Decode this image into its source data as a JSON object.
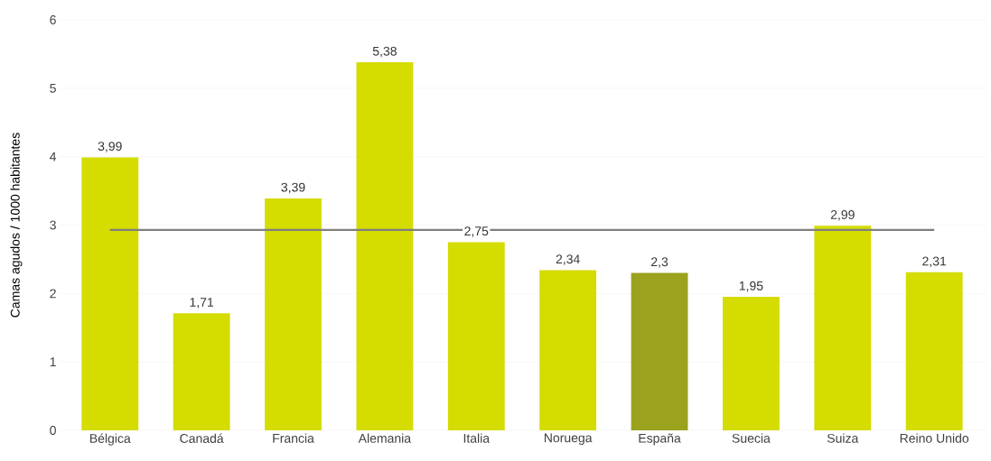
{
  "chart_data": {
    "type": "bar",
    "ylabel": "Camas agudos / 1000 habitantes",
    "categories": [
      "Bélgica",
      "Canadá",
      "Francia",
      "Alemania",
      "Italia",
      "Noruega",
      "España",
      "Suecia",
      "Suiza",
      "Reino Unido"
    ],
    "values": [
      3.99,
      1.71,
      3.39,
      5.38,
      2.75,
      2.34,
      2.3,
      1.95,
      2.99,
      2.31
    ],
    "value_labels": [
      "3,99",
      "1,71",
      "3,39",
      "5,38",
      "2,75",
      "2,34",
      "2,3",
      "1,95",
      "2,99",
      "2,31"
    ],
    "colors": [
      "#d4dc00",
      "#d4dc00",
      "#d4dc00",
      "#d4dc00",
      "#d4dc00",
      "#d4dc00",
      "#9aa21e",
      "#d4dc00",
      "#d4dc00",
      "#d4dc00"
    ],
    "ylim": [
      0,
      6
    ],
    "yticks": [
      0,
      1,
      2,
      3,
      4,
      5,
      6
    ],
    "grid": "y",
    "ref_lines": [
      {
        "axis": "y",
        "value": 2.93,
        "color": "#7f7f7f"
      }
    ]
  }
}
